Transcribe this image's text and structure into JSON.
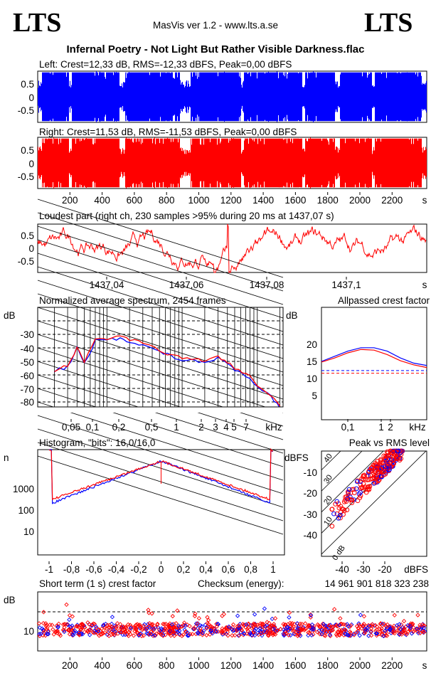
{
  "header": {
    "logo_left": "LTS",
    "logo_right": "LTS",
    "app": "MasVis ver 1.2 - www.lts.a.se",
    "file": "Infernal Poetry - Not Light But Rather Visible Darkness.flac"
  },
  "colors": {
    "left": "#0000ff",
    "right": "#ff0000"
  },
  "chart_data": [
    {
      "id": "left",
      "type": "line",
      "title": "Left: Crest=12,33 dB, RMS=-12,33 dBFS, Peak=0,00 dBFS",
      "ylim": [
        -1,
        1
      ],
      "yticks": [
        "0.5",
        "0",
        "-0.5"
      ],
      "xlim": [
        0,
        2410
      ]
    },
    {
      "id": "right",
      "type": "line",
      "title": "Right: Crest=11,53 dB, RMS=-11,53 dBFS, Peak=0,00 dBFS",
      "ylim": [
        -1,
        1
      ],
      "yticks": [
        "0.5",
        "0",
        "-0.5"
      ],
      "xticks": [
        "200",
        "400",
        "600",
        "800",
        "1000",
        "1200",
        "1400",
        "1600",
        "1800",
        "2000",
        "2200"
      ],
      "xunit": "s",
      "xlim": [
        0,
        2410
      ]
    },
    {
      "id": "loudest",
      "type": "line",
      "title": "Loudest part (right ch, 230 samples >95% during 20 ms at 1437,07 s)",
      "ylim": [
        -1,
        1
      ],
      "yticks": [
        "0.5",
        "0",
        "-0.5"
      ],
      "xticks": [
        "1437,04",
        "1437,06",
        "1437,08",
        "1437,1"
      ],
      "xunit": "s",
      "xlim": [
        1437.023,
        1437.12
      ]
    },
    {
      "id": "spectrum",
      "type": "line",
      "title": "Normalized average spectrum, 2454 frames",
      "ylabel": "dB",
      "yticks": [
        "-30",
        "-40",
        "-50",
        "-60",
        "-70",
        "-80"
      ],
      "xticks": [
        "0,05",
        "0,1",
        "0,2",
        "0,5",
        "1",
        "2",
        "3",
        "4",
        "5",
        "7"
      ],
      "xunit": "kHz",
      "series": [
        {
          "name": "left",
          "x_khz": [
            0.02,
            0.03,
            0.04,
            0.05,
            0.07,
            0.1,
            0.15,
            0.2,
            0.3,
            0.5,
            0.7,
            1,
            1.5,
            2,
            3,
            4,
            5,
            7,
            10,
            15,
            20
          ],
          "db": [
            -57,
            -54,
            -40,
            -52,
            -35,
            -34,
            -33,
            -35,
            -38,
            -43,
            -46,
            -49,
            -50,
            -51,
            -47,
            -52,
            -56,
            -60,
            -68,
            -76,
            -84
          ]
        },
        {
          "name": "right",
          "x_khz": [
            0.02,
            0.03,
            0.04,
            0.05,
            0.07,
            0.1,
            0.15,
            0.2,
            0.3,
            0.5,
            0.7,
            1,
            1.5,
            2,
            3,
            4,
            5,
            7,
            10,
            15,
            20
          ],
          "db": [
            -57,
            -53,
            -39,
            -50,
            -34,
            -33,
            -32,
            -34,
            -37,
            -42,
            -45,
            -48,
            -49,
            -50,
            -46,
            -51,
            -55,
            -59,
            -67,
            -75,
            -84
          ]
        }
      ]
    },
    {
      "id": "crest",
      "type": "line",
      "title": "Allpassed crest factor",
      "ylabel": "dB",
      "yticks": [
        "20",
        "15",
        "10",
        "5"
      ],
      "xticks": [
        "0,1",
        "1",
        "2"
      ],
      "xunit": "kHz",
      "series": [
        {
          "name": "left",
          "db": [
            15,
            16.5,
            18,
            19,
            19,
            18,
            16,
            14.5,
            13.8
          ],
          "reference": 12.33
        },
        {
          "name": "right",
          "db": [
            14.8,
            16,
            17.5,
            18.5,
            18.3,
            17,
            15.2,
            14,
            13.2
          ],
          "reference": 11.53
        }
      ]
    },
    {
      "id": "histogram",
      "type": "line",
      "title": "Histogram, \"bits\": 16,0/16,0",
      "ylabel": "n",
      "yticks": [
        "1000",
        "100",
        "10"
      ],
      "xticks": [
        "-1",
        "-0,8",
        "-0,6",
        "-0,4",
        "-0,2",
        "0",
        "0,2",
        "0,4",
        "0,6",
        "0,8",
        "1"
      ]
    },
    {
      "id": "peakrms",
      "type": "scatter",
      "title": "Peak vs RMS level",
      "ylabel": "dBFS",
      "xlabel": "dBFS",
      "yticks": [
        "-10",
        "-20",
        "-30",
        "-40"
      ],
      "xticks": [
        "-40",
        "-30",
        "-20"
      ],
      "diagonals": [
        "40",
        "30",
        "20",
        "10",
        "0 dB"
      ]
    },
    {
      "id": "shortterm",
      "type": "scatter",
      "title": "Short term (1 s) crest factor",
      "ylabel": "dB",
      "yticks": [
        "10"
      ],
      "xticks": [
        "200",
        "400",
        "600",
        "800",
        "1000",
        "1200",
        "1400",
        "1600",
        "1800",
        "2000",
        "2200"
      ],
      "xunit": "s",
      "checksum_label": "Checksum (energy):",
      "checksum": "14 961 901 818 323 238"
    }
  ]
}
